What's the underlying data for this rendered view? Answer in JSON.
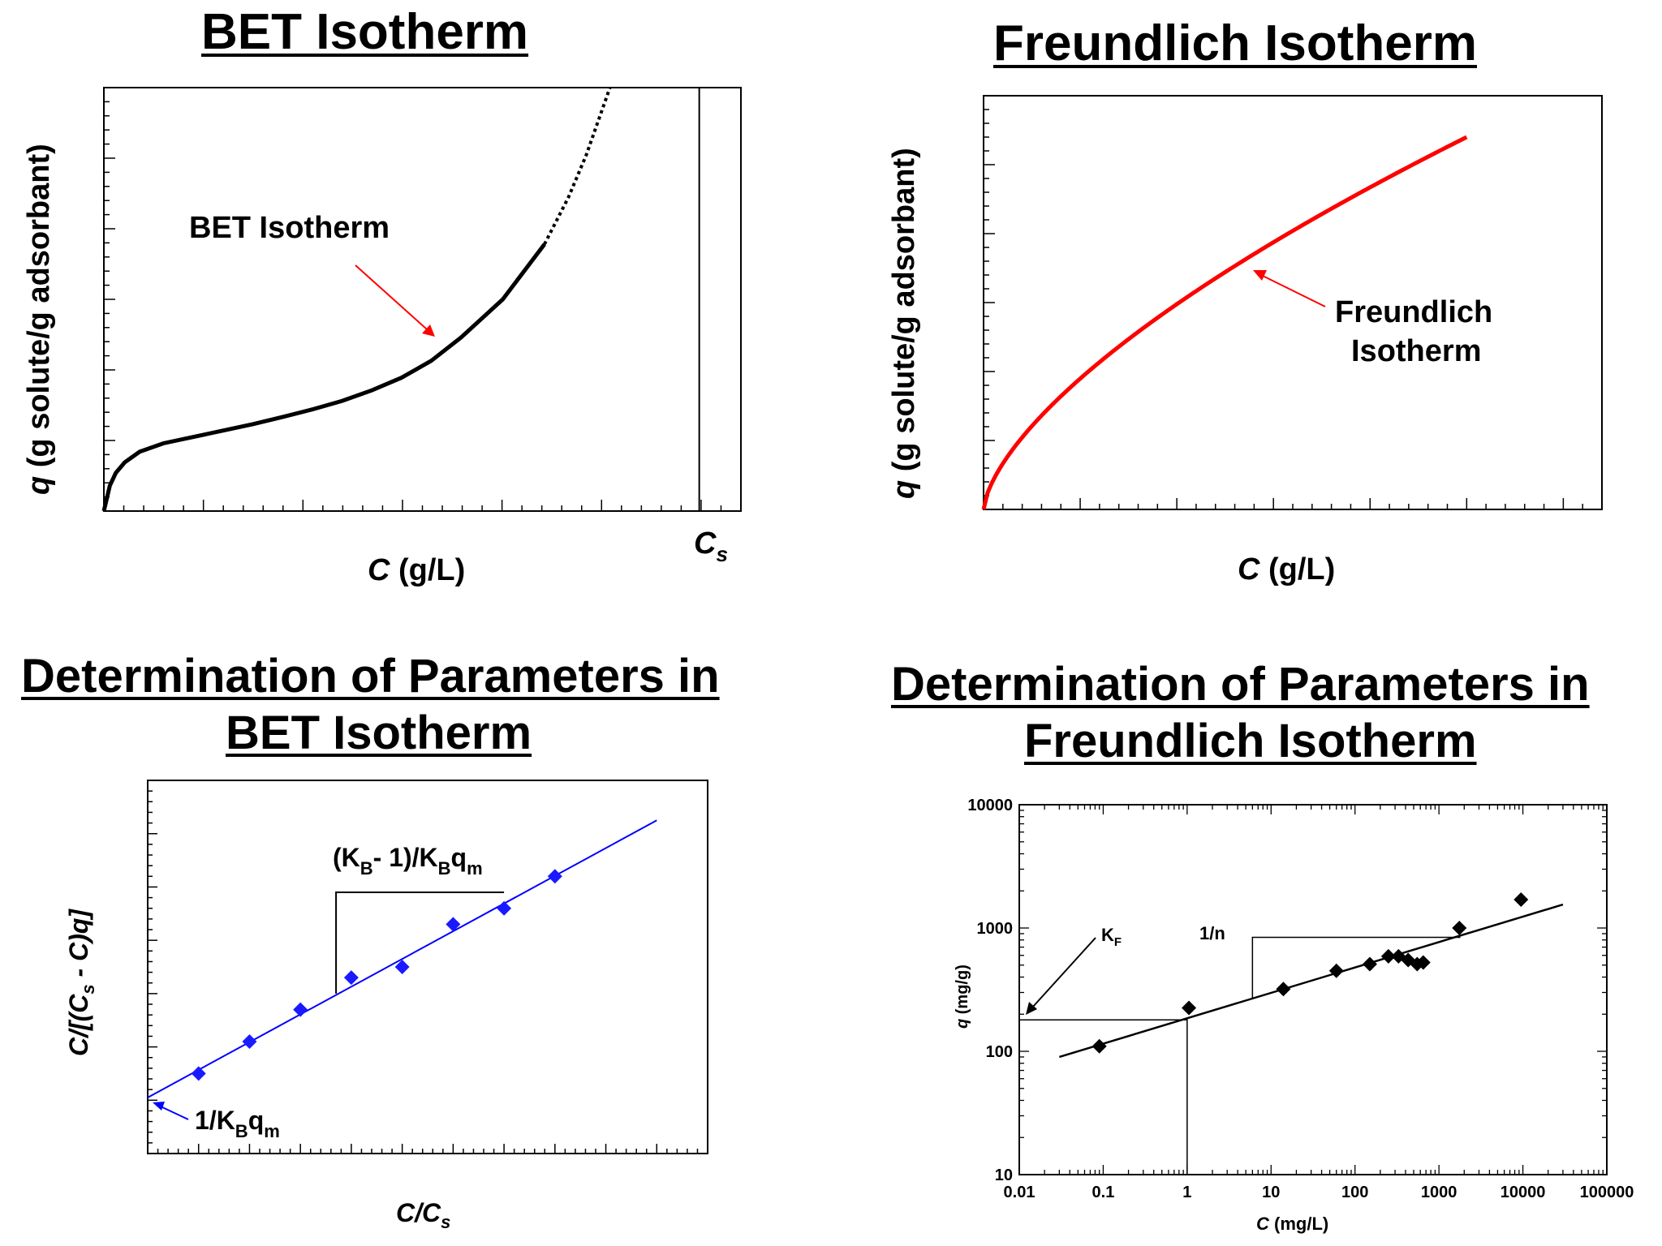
{
  "colors": {
    "black": "#000000",
    "red": "#ff0000",
    "blue": "#0000ff",
    "blueMarker": "#1a1aff"
  },
  "chart_data": [
    {
      "id": "bet",
      "type": "line",
      "title": "BET Isotherm",
      "xlabel_italic": "C",
      "xlabel_rest": " (g/L)",
      "ylabel_italic": "q",
      "ylabel_rest": " (g solute/g adsorbant)",
      "annotation": "BET Isotherm",
      "cs_label": "C",
      "cs_sub": "s",
      "xlim": [
        0,
        1.07
      ],
      "ylim": [
        0,
        1.0
      ],
      "cs_x": 1.0,
      "solid": {
        "x": [
          0,
          0.01,
          0.02,
          0.035,
          0.06,
          0.1,
          0.15,
          0.2,
          0.25,
          0.3,
          0.35,
          0.4,
          0.45,
          0.5,
          0.55,
          0.6,
          0.67,
          0.74
        ],
        "y": [
          0,
          0.06,
          0.09,
          0.115,
          0.14,
          0.16,
          0.175,
          0.19,
          0.205,
          0.222,
          0.24,
          0.26,
          0.285,
          0.315,
          0.355,
          0.41,
          0.5,
          0.63
        ]
      },
      "dotted": {
        "x": [
          0.74,
          0.78,
          0.81,
          0.835,
          0.85
        ],
        "y": [
          0.63,
          0.74,
          0.84,
          0.94,
          1.0
        ]
      }
    },
    {
      "id": "freundlich",
      "type": "line",
      "title": "Freundlich Isotherm",
      "xlabel_italic": "C",
      "xlabel_rest": " (g/L)",
      "ylabel_italic": "q",
      "ylabel_rest": " (g solute/g adsorbant)",
      "annotation": [
        "Freundlich",
        "Isotherm"
      ],
      "xlim": [
        0,
        1.28
      ],
      "ylim": [
        0,
        1.0
      ],
      "curve_x_end": 1.0,
      "curve_k": 0.9,
      "curve_exp": 0.65
    },
    {
      "id": "bet_linear",
      "type": "scatter",
      "title": [
        "Determination of Parameters in",
        "BET Isotherm"
      ],
      "xlabel": "C/C",
      "xlabel_sub": "s",
      "ylabel": "C/[(C",
      "ylabel_sub": "s",
      "ylabel_end": " - C)q]",
      "slope_label": "(K",
      "slope_sub1": "B",
      "slope_mid": "- 1)/K",
      "slope_sub2": "B",
      "slope_end": "q",
      "slope_sub3": "m",
      "intercept_label": "1/K",
      "intercept_sub": "B",
      "intercept_end": "q",
      "intercept_sub2": "m",
      "xlim": [
        0,
        11
      ],
      "ylim": [
        0,
        7
      ],
      "points": {
        "x": [
          1,
          2,
          3,
          4,
          5,
          6,
          7,
          8
        ],
        "y": [
          1.5,
          2.1,
          2.7,
          3.3,
          3.5,
          4.3,
          4.6,
          5.2
        ]
      },
      "fit": {
        "x": [
          0,
          10
        ],
        "y": [
          1.05,
          6.25
        ]
      },
      "slope_triangle": {
        "x1": 3.7,
        "x2": 7.0,
        "y_low": 3.0,
        "y_high": 4.9
      }
    },
    {
      "id": "freundlich_loglog",
      "type": "scatter",
      "title": [
        "Determination of Parameters in",
        "Freundlich Isotherm"
      ],
      "xlabel_italic": "C",
      "xlabel_rest": " (mg/L)",
      "ylabel_italic": "q",
      "ylabel_rest": " (mg/g)",
      "x_scale": "log",
      "y_scale": "log",
      "xlim": [
        0.01,
        100000
      ],
      "ylim": [
        10,
        10000
      ],
      "x_ticks": [
        "0.01",
        "0.1",
        "1",
        "10",
        "100",
        "1000",
        "10000",
        "100000"
      ],
      "y_ticks": [
        "10",
        "100",
        "1000",
        "10000"
      ],
      "points": {
        "x": [
          0.09,
          1.05,
          14,
          60,
          150,
          250,
          330,
          430,
          550,
          650,
          1750,
          9500
        ],
        "y": [
          110,
          225,
          320,
          450,
          510,
          590,
          590,
          550,
          510,
          525,
          1000,
          1700
        ]
      },
      "fit": {
        "x": [
          0.03,
          30000
        ],
        "y": [
          90,
          1550
        ]
      },
      "kf_label": "K",
      "kf_sub": "F",
      "n_label": "1/n",
      "kf_value": 180,
      "slope_triangle": {
        "x1": 6,
        "x2": 1800,
        "y_low": 265,
        "y_high": 840
      }
    }
  ]
}
